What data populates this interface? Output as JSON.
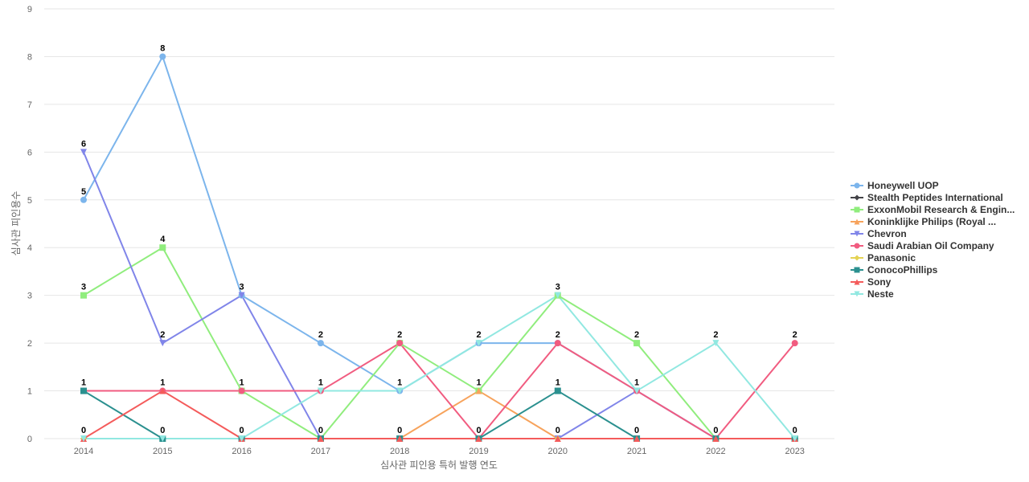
{
  "chart_data": {
    "type": "line",
    "title": "",
    "xlabel": "심사관 피인용 특허 발행 연도",
    "ylabel": "심사관 피인용수",
    "categories": [
      "2014",
      "2015",
      "2016",
      "2017",
      "2018",
      "2019",
      "2020",
      "2021",
      "2022",
      "2023"
    ],
    "ylim": [
      0,
      9
    ],
    "yticks": [
      0,
      1,
      2,
      3,
      4,
      5,
      6,
      7,
      8,
      9
    ],
    "grid": true,
    "legend_position": "right",
    "series": [
      {
        "name": "Honeywell UOP",
        "color": "#7cb5ec",
        "marker": "circle",
        "values": [
          5,
          8,
          3,
          2,
          1,
          2,
          2,
          1,
          0,
          0
        ]
      },
      {
        "name": "Stealth Peptides International",
        "color": "#434348",
        "marker": "diamond",
        "values": [
          0,
          0,
          0,
          0,
          0,
          0,
          0,
          0,
          0,
          0
        ]
      },
      {
        "name": "ExxonMobil Research & Engin...",
        "color": "#90ed7d",
        "marker": "square",
        "values": [
          3,
          4,
          1,
          0,
          2,
          1,
          3,
          2,
          0,
          0
        ]
      },
      {
        "name": "Koninklijke Philips (Royal ...",
        "color": "#f7a35c",
        "marker": "triangle",
        "values": [
          0,
          0,
          0,
          0,
          0,
          1,
          0,
          0,
          0,
          0
        ]
      },
      {
        "name": "Chevron",
        "color": "#8085e9",
        "marker": "triangle-down",
        "values": [
          6,
          2,
          3,
          0,
          0,
          0,
          0,
          1,
          0,
          0
        ]
      },
      {
        "name": "Saudi Arabian Oil Company",
        "color": "#f15c80",
        "marker": "circle",
        "values": [
          1,
          1,
          1,
          1,
          2,
          0,
          2,
          1,
          0,
          2
        ]
      },
      {
        "name": "Panasonic",
        "color": "#e4d354",
        "marker": "diamond",
        "values": [
          0,
          0,
          0,
          0,
          0,
          0,
          0,
          0,
          0,
          0
        ]
      },
      {
        "name": "ConocoPhillips",
        "color": "#2b908f",
        "marker": "square",
        "values": [
          1,
          0,
          0,
          0,
          0,
          0,
          1,
          0,
          0,
          0
        ]
      },
      {
        "name": "Sony",
        "color": "#f45b5b",
        "marker": "triangle",
        "values": [
          0,
          1,
          0,
          0,
          0,
          0,
          0,
          0,
          0,
          0
        ]
      },
      {
        "name": "Neste",
        "color": "#91e8e1",
        "marker": "triangle-down",
        "values": [
          0,
          0,
          0,
          1,
          1,
          2,
          3,
          1,
          2,
          0
        ]
      }
    ],
    "data_labels": [
      {
        "x": "2014",
        "values": [
          "6",
          "5",
          "3",
          "1",
          "0"
        ]
      },
      {
        "x": "2015",
        "values": [
          "8",
          "4",
          "2",
          "1",
          "0"
        ]
      },
      {
        "x": "2016",
        "values": [
          "3",
          "1",
          "0"
        ]
      },
      {
        "x": "2017",
        "values": [
          "2",
          "1",
          "0"
        ]
      },
      {
        "x": "2018",
        "values": [
          "2",
          "1",
          "0"
        ]
      },
      {
        "x": "2019",
        "values": [
          "2",
          "1",
          "0"
        ]
      },
      {
        "x": "2020",
        "values": [
          "3",
          "2",
          "1",
          "0"
        ]
      },
      {
        "x": "2021",
        "values": [
          "2",
          "1",
          "0"
        ]
      },
      {
        "x": "2022",
        "values": [
          "2",
          "0"
        ]
      },
      {
        "x": "2023",
        "values": [
          "2",
          "0"
        ]
      }
    ]
  }
}
